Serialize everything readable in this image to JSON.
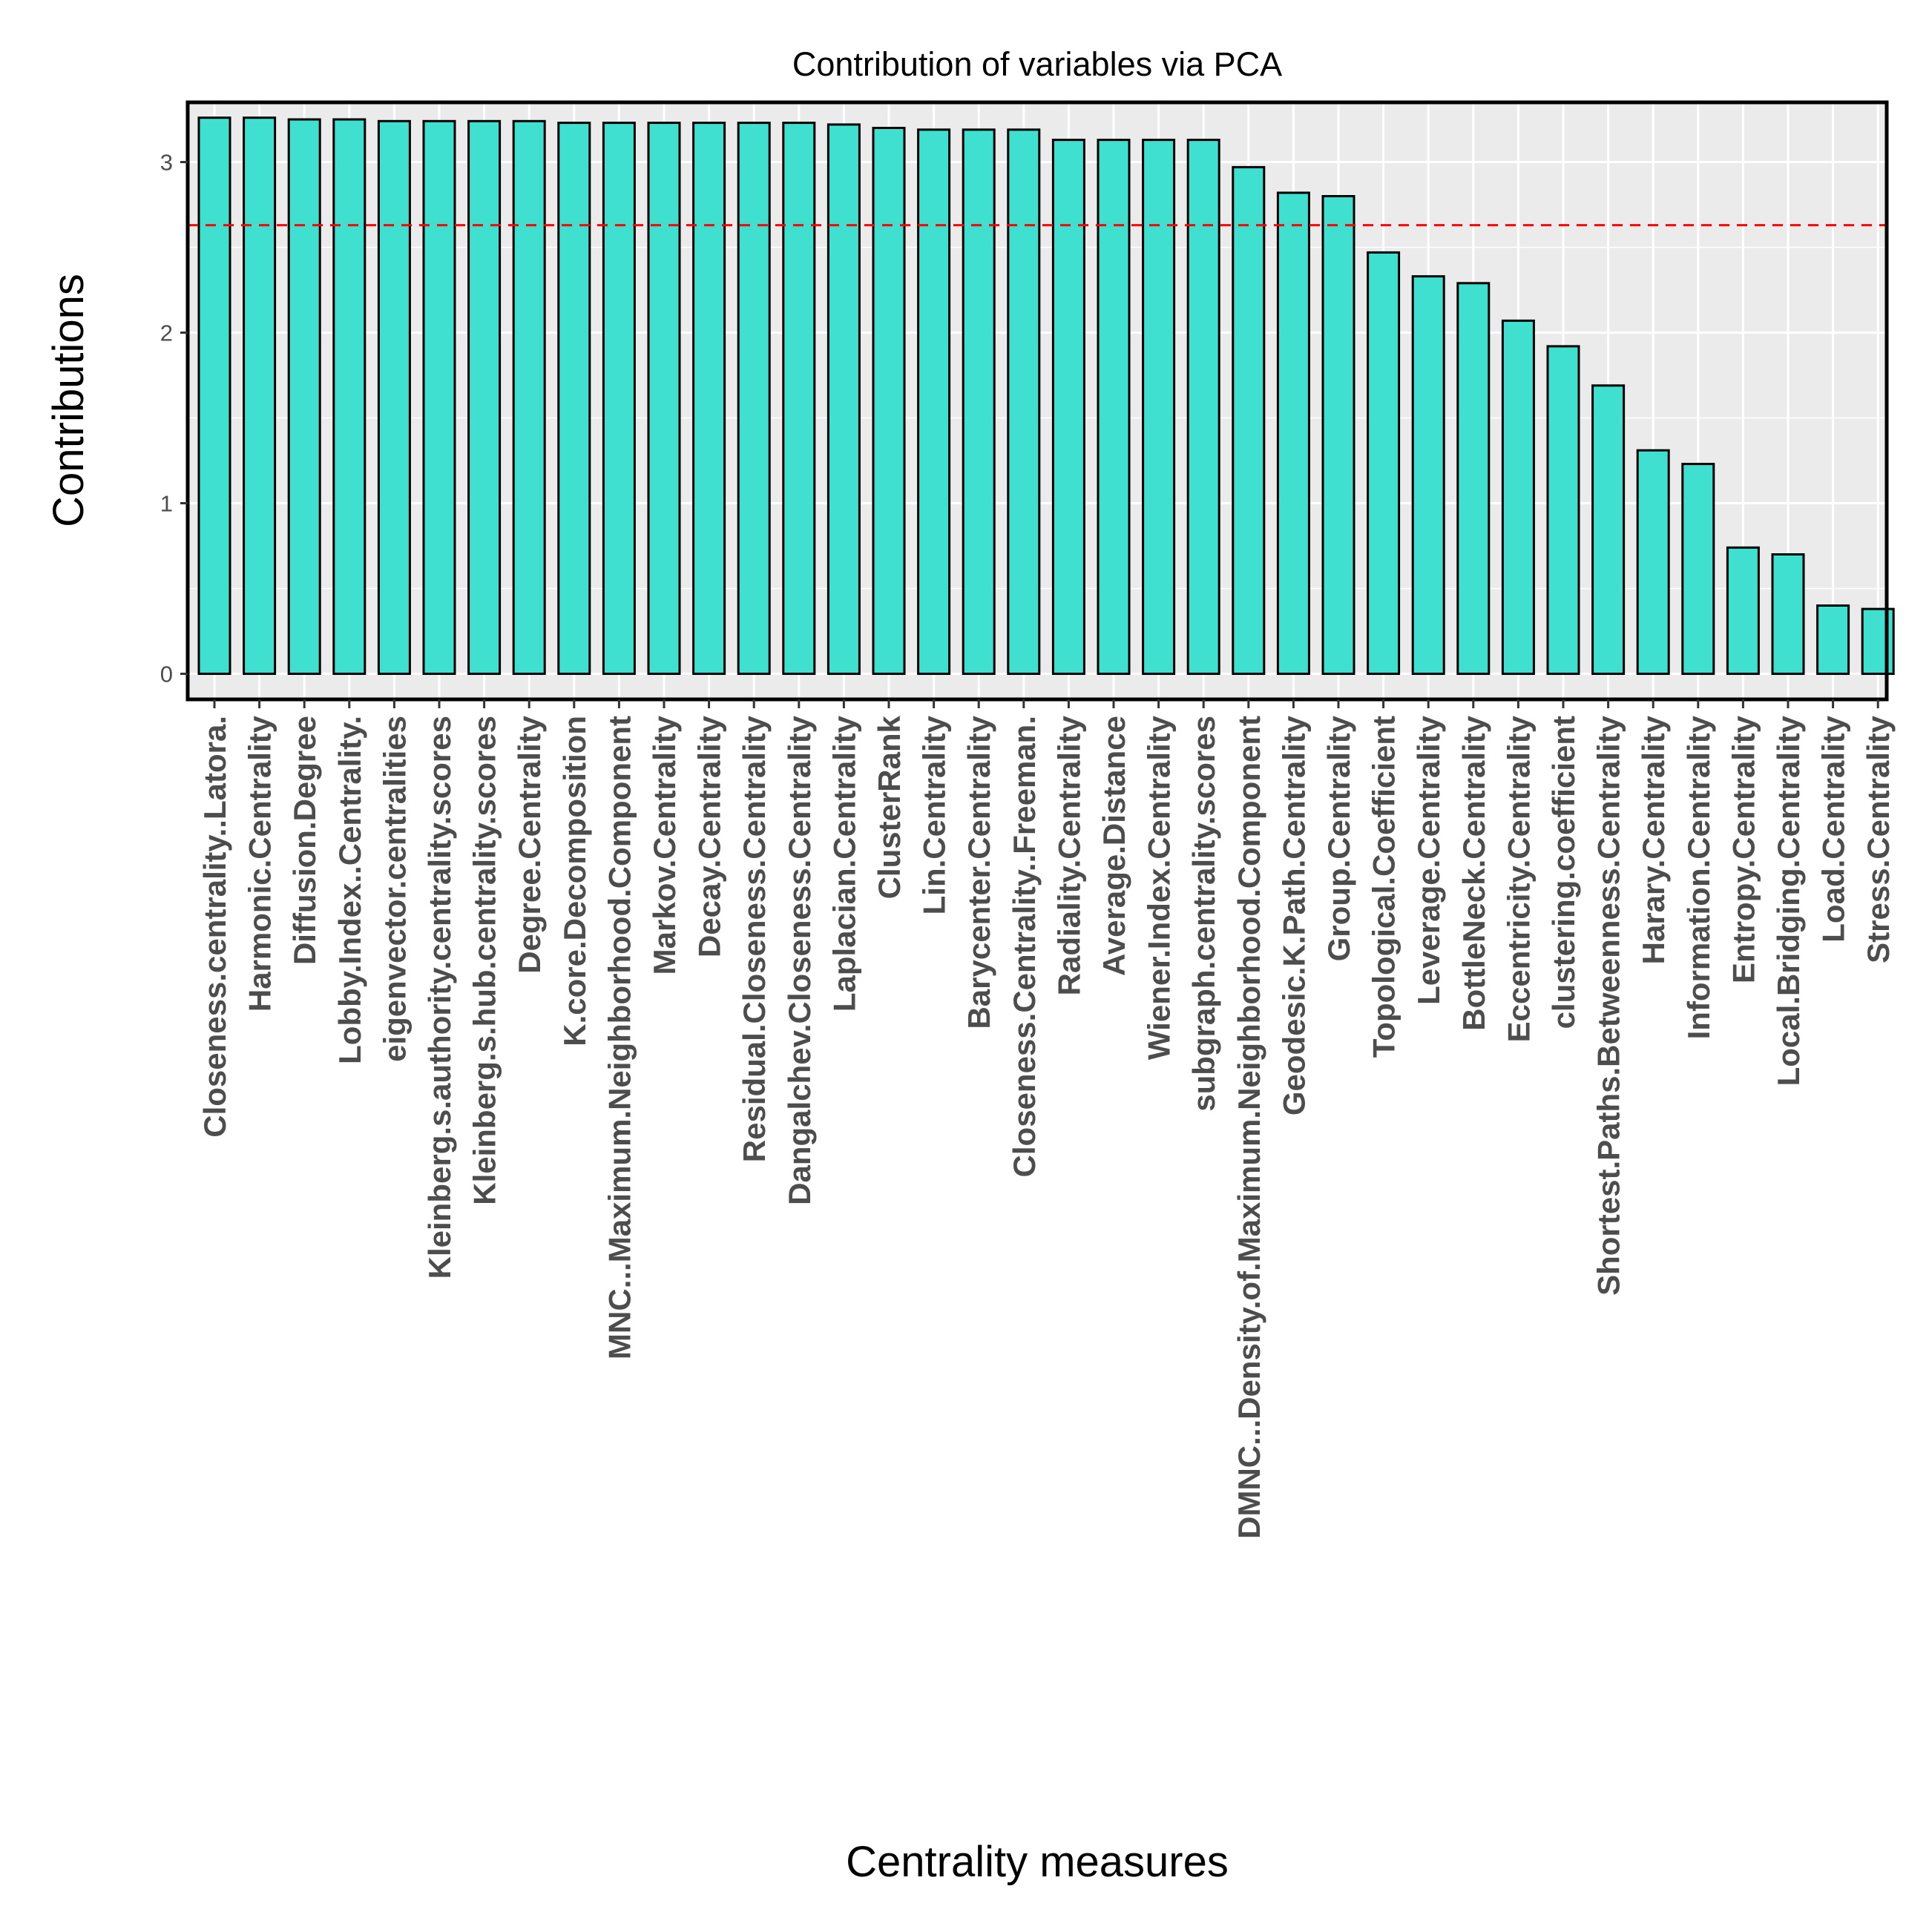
{
  "chart_data": {
    "type": "bar",
    "title": "Contribution of variables via PCA",
    "xlabel": "Centrality measures",
    "ylabel": "Contributions",
    "ylim": [
      -0.15,
      3.35
    ],
    "yticks": [
      0,
      1,
      2,
      3
    ],
    "ytick_labels": [
      "0",
      "1",
      "2",
      "3"
    ],
    "grid": true,
    "legend": "none",
    "reference_line": {
      "value": 2.63,
      "color": "#ff0000",
      "style": "dashed"
    },
    "colors": {
      "bar_fill": "#40e0d0",
      "bar_stroke": "#000000",
      "panel_background": "#ebebeb",
      "grid": "#ffffff",
      "panel_border": "#000000"
    },
    "categories": [
      "Closeness.centrality..Latora.",
      "Harmonic.Centrality",
      "Diffusion.Degree",
      "Lobby.Index..Centrality.",
      "eigenvector.centralities",
      "Kleinberg.s.authority.centrality.scores",
      "Kleinberg.s.hub.centrality.scores",
      "Degree.Centrality",
      "K.core.Decomposition",
      "MNC...Maximum.Neighborhood.Component",
      "Markov.Centrality",
      "Decay.Centrality",
      "Residual.Closeness.Centrality",
      "Dangalchev.Closeness.Centrality",
      "Laplacian.Centrality",
      "ClusterRank",
      "Lin.Centrality",
      "Barycenter.Centrality",
      "Closeness.Centrality..Freeman.",
      "Radiality.Centrality",
      "Average.Distance",
      "Wiener.Index.Centrality",
      "subgraph.centrality.scores",
      "DMNC...Density.of.Maximum.Neighborhood.Component",
      "Geodesic.K.Path.Centrality",
      "Group.Centrality",
      "Topological.Coefficient",
      "Leverage.Centrality",
      "BottleNeck.Centrality",
      "Eccentricity.Centrality",
      "clustering.coefficient",
      "Shortest.Paths.Betweenness.Centrality",
      "Harary.Centrality",
      "Information.Centrality",
      "Entropy.Centrality",
      "Local.Bridging.Centrality",
      "Load.Centrality",
      "Stress.Centrality"
    ],
    "values": [
      3.26,
      3.26,
      3.25,
      3.25,
      3.24,
      3.24,
      3.24,
      3.24,
      3.23,
      3.23,
      3.23,
      3.23,
      3.23,
      3.23,
      3.22,
      3.2,
      3.19,
      3.19,
      3.19,
      3.13,
      3.13,
      3.13,
      3.13,
      2.97,
      2.82,
      2.8,
      2.47,
      2.33,
      2.29,
      2.07,
      1.92,
      1.69,
      1.31,
      1.23,
      0.74,
      0.7,
      0.4,
      0.38
    ]
  }
}
